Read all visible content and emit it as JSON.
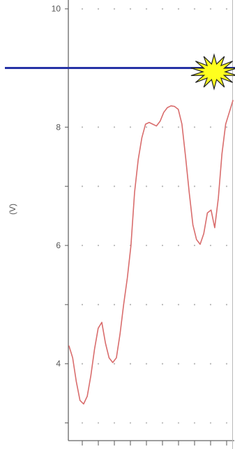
{
  "chart_data": {
    "type": "line",
    "title": "",
    "xlabel": "",
    "ylabel": "(V)",
    "ylim": [
      2.7,
      10.15
    ],
    "yticks": [
      10,
      8,
      6,
      4
    ],
    "minor_yticks": [
      9,
      7,
      5,
      3
    ],
    "grid": true,
    "series": [
      {
        "color": "#d96d6d",
        "values": [
          4.3,
          4.1,
          3.7,
          3.38,
          3.32,
          3.45,
          3.8,
          4.25,
          4.6,
          4.7,
          4.35,
          4.1,
          4.02,
          4.1,
          4.5,
          5.0,
          5.45,
          6.0,
          6.9,
          7.45,
          7.82,
          8.05,
          8.08,
          8.05,
          8.02,
          8.1,
          8.25,
          8.33,
          8.36,
          8.35,
          8.3,
          8.05,
          7.5,
          6.9,
          6.35,
          6.1,
          6.02,
          6.2,
          6.55,
          6.6,
          6.3,
          6.8,
          7.55,
          8.05,
          8.25,
          8.45
        ]
      }
    ],
    "reference_line": {
      "value": 9.0,
      "color": "#2633a6"
    }
  },
  "colors": {
    "axis": "#666666",
    "grid": "#b8b8b8",
    "frame_edge": "#b9b9b9",
    "burst_fill": "#ffff1e",
    "burst_stroke": "#222222"
  },
  "icons": {
    "burst": "starburst-icon"
  }
}
